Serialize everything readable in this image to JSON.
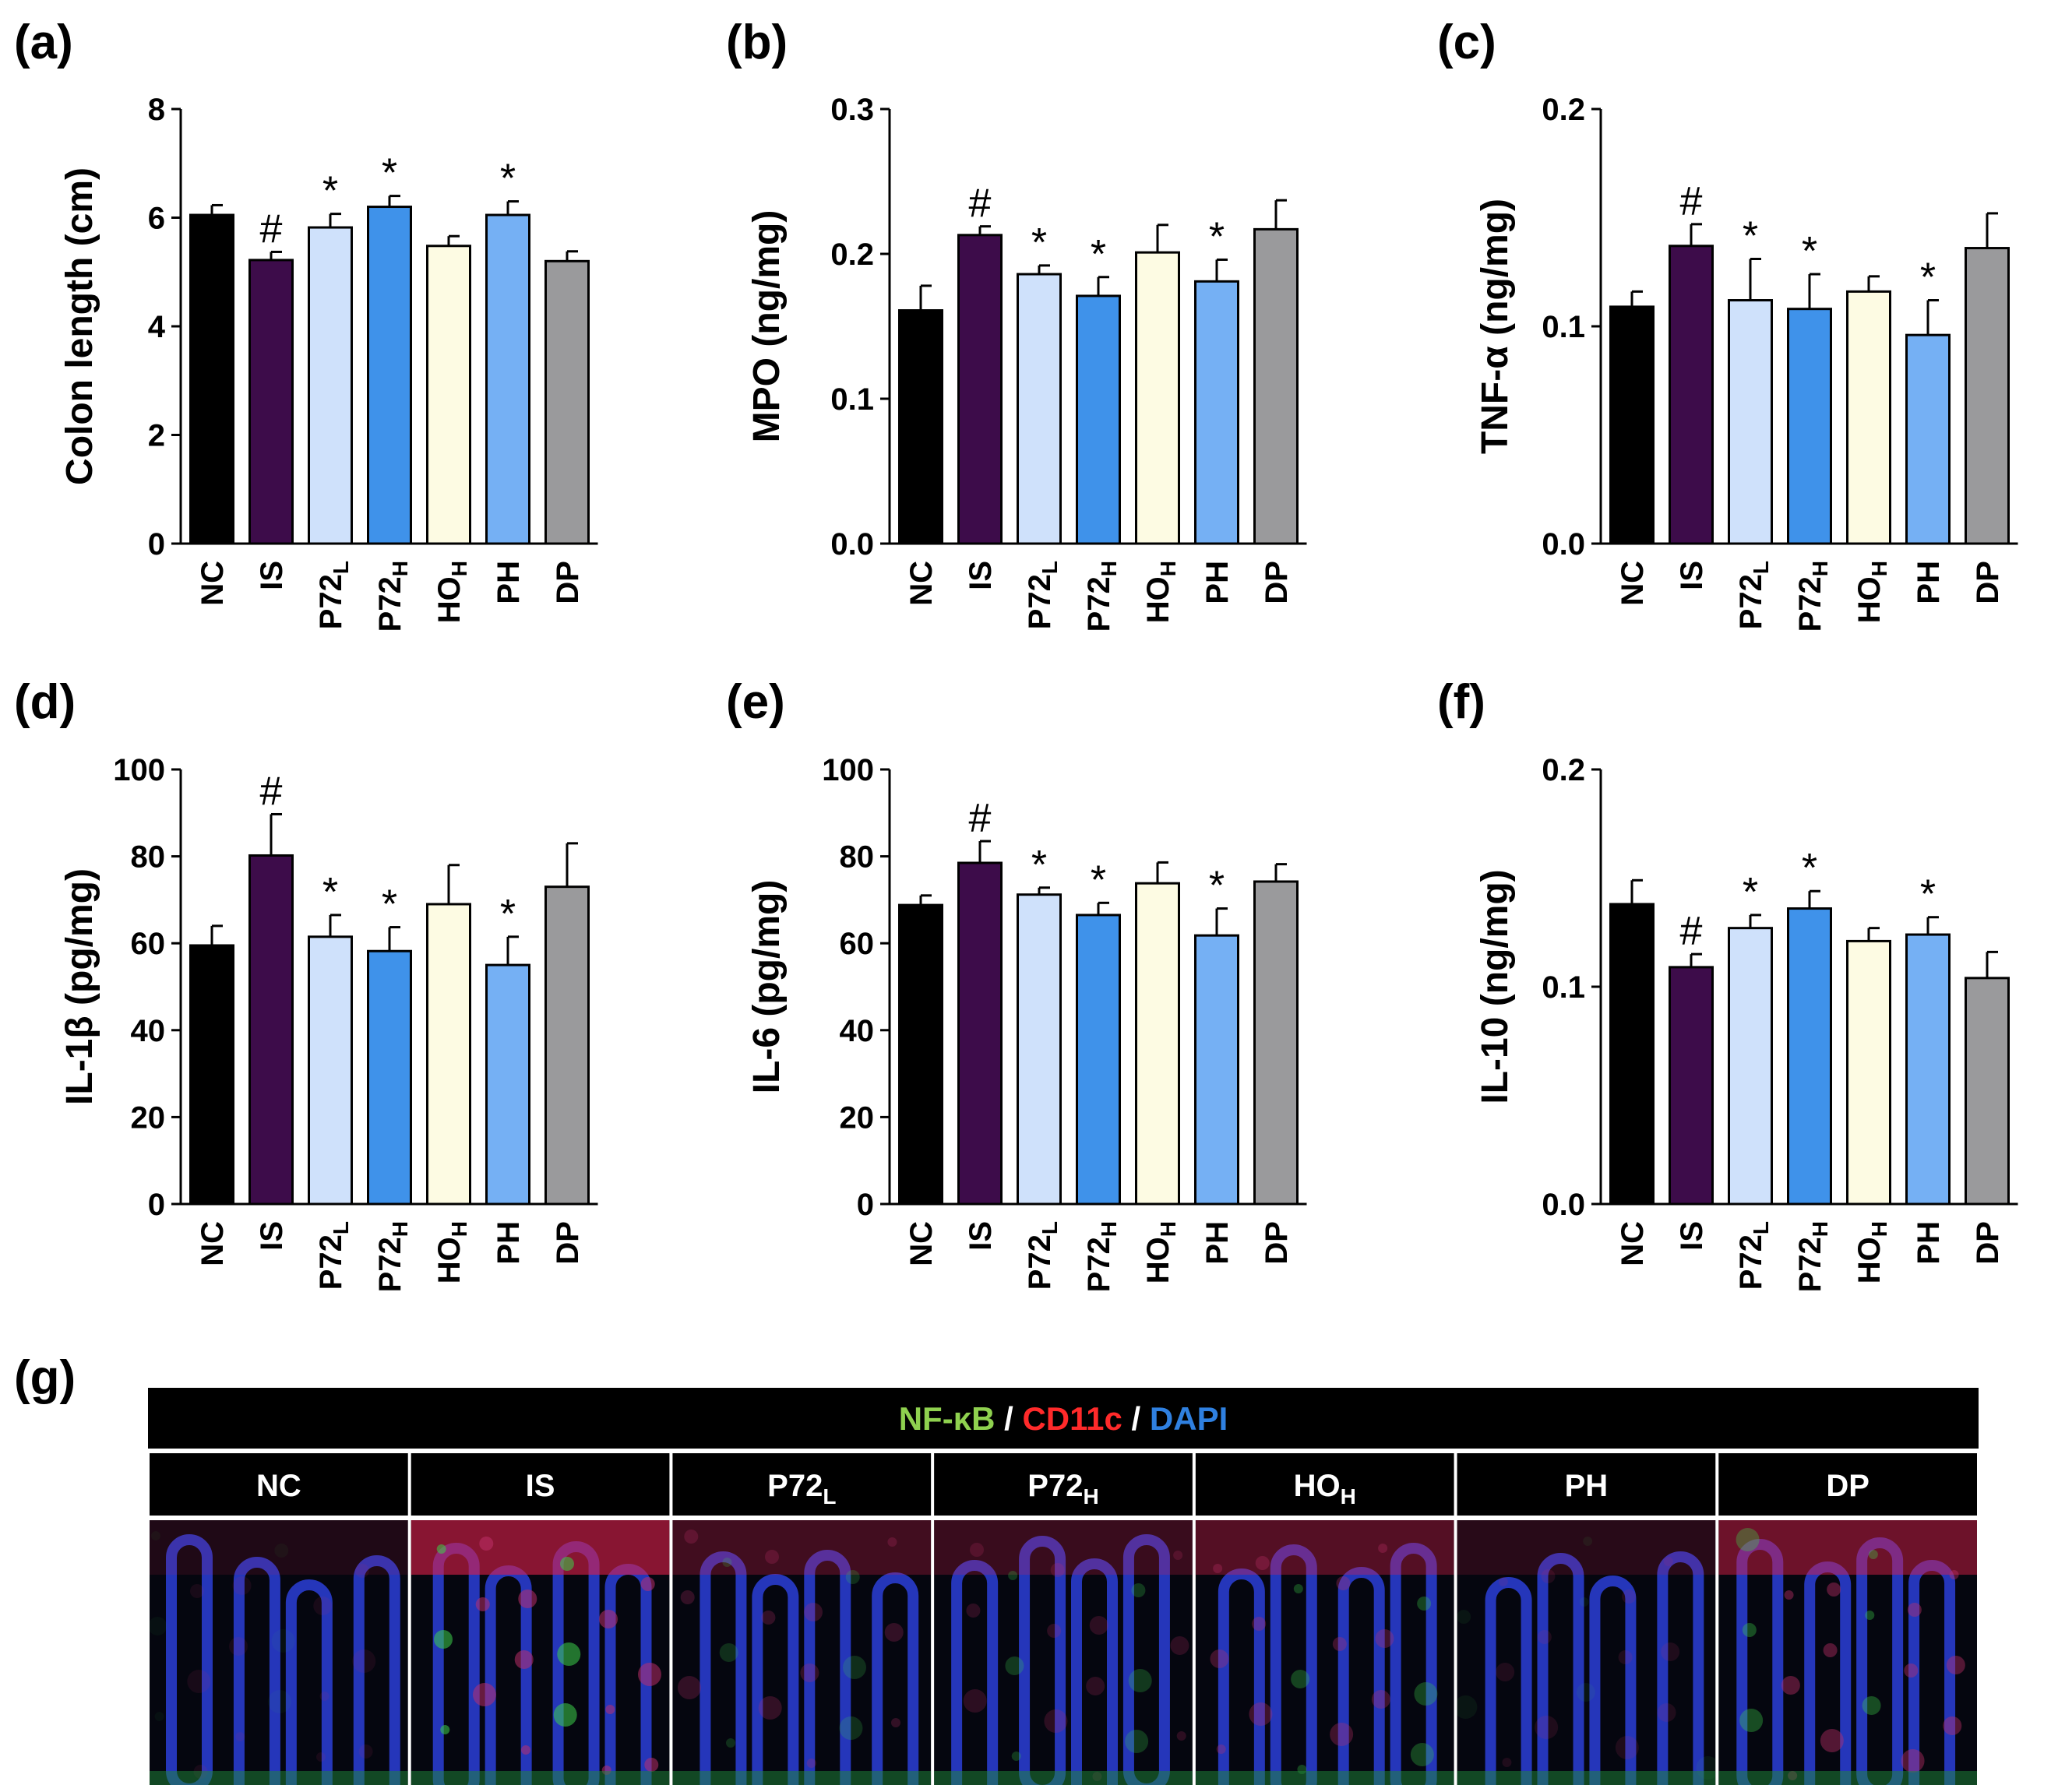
{
  "chart_data": [
    {
      "panel": "(a)",
      "type": "bar",
      "ylabel": "Colon length (cm)",
      "ylim": [
        0,
        8
      ],
      "ticks": [
        "0",
        "2",
        "4",
        "6",
        "8"
      ],
      "categories": [
        "NC",
        "IS",
        "P72L",
        "P72H",
        "HOH",
        "PH",
        "DP"
      ],
      "values": [
        6.05,
        5.22,
        5.82,
        6.2,
        5.48,
        6.05,
        5.2
      ],
      "errors": [
        0.18,
        0.15,
        0.25,
        0.2,
        0.18,
        0.25,
        0.18
      ],
      "marks": [
        "",
        "#",
        "*",
        "*",
        "",
        "*",
        ""
      ]
    },
    {
      "panel": "(b)",
      "type": "bar",
      "ylabel": "MPO (ng/mg)",
      "ylim": [
        0,
        0.3
      ],
      "ticks": [
        "0.0",
        "0.1",
        "0.2",
        "0.3"
      ],
      "categories": [
        "NC",
        "IS",
        "P72L",
        "P72H",
        "HOH",
        "PH",
        "DP"
      ],
      "values": [
        0.161,
        0.213,
        0.186,
        0.171,
        0.201,
        0.181,
        0.217
      ],
      "errors": [
        0.017,
        0.006,
        0.006,
        0.013,
        0.019,
        0.015,
        0.02
      ],
      "marks": [
        "",
        "#",
        "*",
        "*",
        "",
        "*",
        ""
      ]
    },
    {
      "panel": "(c)",
      "type": "bar",
      "ylabel": "TNF-α (ng/mg)",
      "ylim": [
        0,
        0.2
      ],
      "ticks": [
        "0.0",
        "0.1",
        "0.2"
      ],
      "categories": [
        "NC",
        "IS",
        "P72L",
        "P72H",
        "HOH",
        "PH",
        "DP"
      ],
      "values": [
        0.109,
        0.137,
        0.112,
        0.108,
        0.116,
        0.096,
        0.136
      ],
      "errors": [
        0.007,
        0.01,
        0.019,
        0.016,
        0.007,
        0.016,
        0.016
      ],
      "marks": [
        "",
        "#",
        "*",
        "*",
        "",
        "*",
        ""
      ]
    },
    {
      "panel": "(d)",
      "type": "bar",
      "ylabel": "IL-1β (pg/mg)",
      "ylim": [
        0,
        100
      ],
      "ticks": [
        "0",
        "20",
        "40",
        "60",
        "80",
        "100"
      ],
      "categories": [
        "NC",
        "IS",
        "P72L",
        "P72H",
        "HOH",
        "PH",
        "DP"
      ],
      "values": [
        59.5,
        80.2,
        61.5,
        58.2,
        69.0,
        55.0,
        73.0
      ],
      "errors": [
        4.5,
        9.5,
        5.0,
        5.5,
        9.0,
        6.5,
        10.0
      ],
      "marks": [
        "",
        "#",
        "*",
        "*",
        "",
        "*",
        ""
      ]
    },
    {
      "panel": "(e)",
      "type": "bar",
      "ylabel": "IL-6 (pg/mg)",
      "ylim": [
        0,
        100
      ],
      "ticks": [
        "0",
        "20",
        "40",
        "60",
        "80",
        "100"
      ],
      "categories": [
        "NC",
        "IS",
        "P72L",
        "P72H",
        "HOH",
        "PH",
        "DP"
      ],
      "values": [
        68.8,
        78.5,
        71.2,
        66.5,
        73.8,
        61.8,
        74.2
      ],
      "errors": [
        2.2,
        5.0,
        1.6,
        2.8,
        4.8,
        6.2,
        4.0
      ],
      "marks": [
        "",
        "#",
        "*",
        "*",
        "",
        "*",
        ""
      ]
    },
    {
      "panel": "(f)",
      "type": "bar",
      "ylabel": "IL-10 (ng/mg)",
      "ylim": [
        0,
        0.2
      ],
      "ticks": [
        "0.0",
        "0.1",
        "0.2"
      ],
      "categories": [
        "NC",
        "IS",
        "P72L",
        "P72H",
        "HOH",
        "PH",
        "DP"
      ],
      "values": [
        0.138,
        0.109,
        0.127,
        0.136,
        0.121,
        0.124,
        0.104
      ],
      "errors": [
        0.011,
        0.006,
        0.006,
        0.008,
        0.006,
        0.008,
        0.012
      ],
      "marks": [
        "",
        "#",
        "*",
        "*",
        "",
        "*",
        ""
      ]
    }
  ],
  "bar_colors": [
    "#000000",
    "#3d0c4a",
    "#cfe1fb",
    "#3f92ea",
    "#fdfbe3",
    "#75b0f4",
    "#9a9a9c"
  ],
  "categories_display": [
    {
      "main": "NC",
      "sub": ""
    },
    {
      "main": "IS",
      "sub": ""
    },
    {
      "main": "P72",
      "sub": "L"
    },
    {
      "main": "P72",
      "sub": "H"
    },
    {
      "main": "HO",
      "sub": "H"
    },
    {
      "main": "PH",
      "sub": ""
    },
    {
      "main": "DP",
      "sub": ""
    }
  ],
  "panel_g": {
    "letter": "(g)",
    "header": {
      "part1": "NF-κB",
      "sep1": " / ",
      "part2": "CD11c",
      "sep2": " / ",
      "part3": "DAPI",
      "color1": "#8fd14f",
      "color2": "#ff2a2a",
      "color3": "#2f80e0"
    },
    "columns": [
      {
        "main": "NC",
        "sub": ""
      },
      {
        "main": "IS",
        "sub": ""
      },
      {
        "main": "P72",
        "sub": "L"
      },
      {
        "main": "P72",
        "sub": "H"
      },
      {
        "main": "HO",
        "sub": "H"
      },
      {
        "main": "PH",
        "sub": ""
      },
      {
        "main": "DP",
        "sub": ""
      }
    ]
  }
}
